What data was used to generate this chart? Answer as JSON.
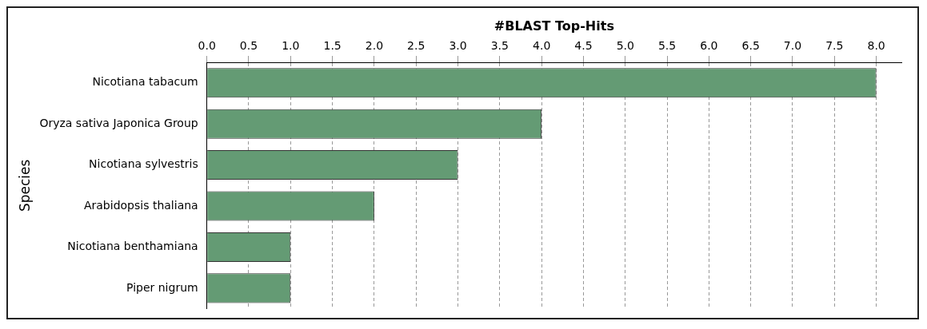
{
  "chart_data": {
    "type": "bar",
    "orientation": "horizontal",
    "xlabel": "#BLAST Top-Hits",
    "ylabel": "Species",
    "categories": [
      "Nicotiana tabacum",
      "Oryza sativa Japonica Group",
      "Nicotiana sylvestris",
      "Arabidopsis thaliana",
      "Nicotiana benthamiana",
      "Piper nigrum"
    ],
    "values": [
      8,
      4,
      3,
      2,
      1,
      1
    ],
    "color": "#649b74",
    "xlim": [
      0,
      8.3
    ],
    "xticks": [
      {
        "value": 0,
        "label": "0.0"
      },
      {
        "value": 0.5,
        "label": "0.5"
      },
      {
        "value": 1,
        "label": "1.0"
      },
      {
        "value": 1.5,
        "label": "1.5"
      },
      {
        "value": 2,
        "label": "2.0"
      },
      {
        "value": 2.5,
        "label": "2.5"
      },
      {
        "value": 3,
        "label": "3.0"
      },
      {
        "value": 3.5,
        "label": "3.5"
      },
      {
        "value": 4,
        "label": "4.0"
      },
      {
        "value": 4.5,
        "label": "4.5"
      },
      {
        "value": 5,
        "label": "5.0"
      },
      {
        "value": 5.5,
        "label": "5.5"
      },
      {
        "value": 6,
        "label": "6.0"
      },
      {
        "value": 6.5,
        "label": "6.5"
      },
      {
        "value": 7,
        "label": "7.0"
      },
      {
        "value": 7.5,
        "label": "7.5"
      },
      {
        "value": 8,
        "label": "8.0"
      }
    ],
    "grid": "x",
    "legend": false
  }
}
